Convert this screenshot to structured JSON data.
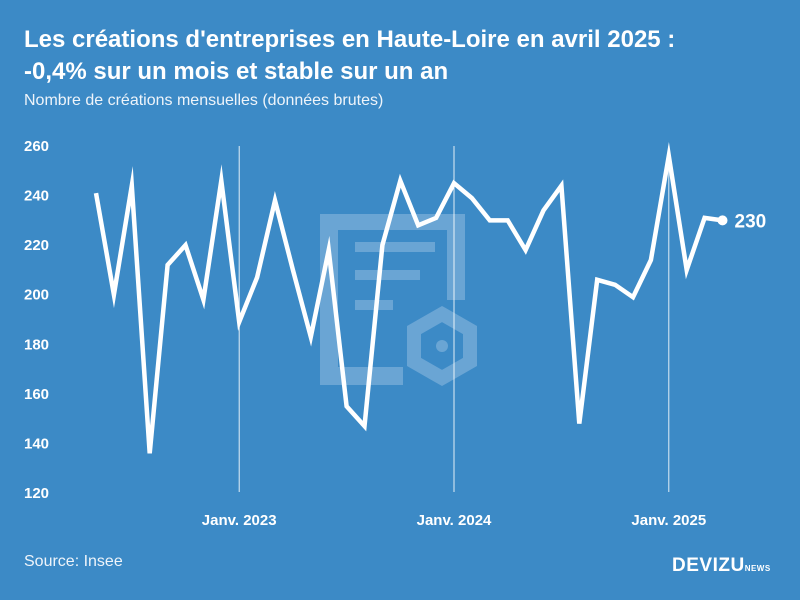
{
  "header": {
    "title_line1": "Les créations d'entreprises en Haute-Loire en avril 2025 :",
    "title_line2": "-0,4% sur un mois et stable sur un an",
    "subtitle": "Nombre de créations mensuelles (données brutes)"
  },
  "footer": {
    "source": "Source: Insee",
    "brand": "DEVIZU",
    "brand_suffix": "NEWS"
  },
  "colors": {
    "background": "#3c8ac6",
    "line": "#ffffff",
    "watermark": "#6aa5d4"
  },
  "chart_data": {
    "type": "line",
    "title": "Les créations d'entreprises en Haute-Loire en avril 2025 : -0,4% sur un mois et stable sur un an",
    "subtitle": "Nombre de créations mensuelles (données brutes)",
    "x": [
      "2022-05",
      "2022-06",
      "2022-07",
      "2022-08",
      "2022-09",
      "2022-10",
      "2022-11",
      "2022-12",
      "2023-01",
      "2023-02",
      "2023-03",
      "2023-04",
      "2023-05",
      "2023-06",
      "2023-07",
      "2023-08",
      "2023-09",
      "2023-10",
      "2023-11",
      "2023-12",
      "2024-01",
      "2024-02",
      "2024-03",
      "2024-04",
      "2024-05",
      "2024-06",
      "2024-07",
      "2024-08",
      "2024-09",
      "2024-10",
      "2024-11",
      "2024-12",
      "2025-01",
      "2025-02",
      "2025-03",
      "2025-04"
    ],
    "series": [
      {
        "values": [
          241,
          200,
          244,
          136,
          212,
          220,
          198,
          246,
          189,
          207,
          238,
          210,
          183,
          218,
          155,
          147,
          220,
          246,
          228,
          231,
          245,
          239,
          230,
          230,
          218,
          234,
          244,
          148,
          206,
          204,
          199,
          214,
          256,
          210,
          231,
          230
        ]
      }
    ],
    "yticks": [
      120,
      140,
      160,
      180,
      200,
      220,
      240,
      260
    ],
    "ylim": [
      120,
      260
    ],
    "xtick_labels": [
      {
        "x": "2023-01",
        "label": "Janv. 2023"
      },
      {
        "x": "2024-01",
        "label": "Janv. 2024"
      },
      {
        "x": "2025-01",
        "label": "Janv. 2025"
      }
    ],
    "end_label": "230",
    "grid": "vertical lines at January",
    "legend": "none"
  }
}
